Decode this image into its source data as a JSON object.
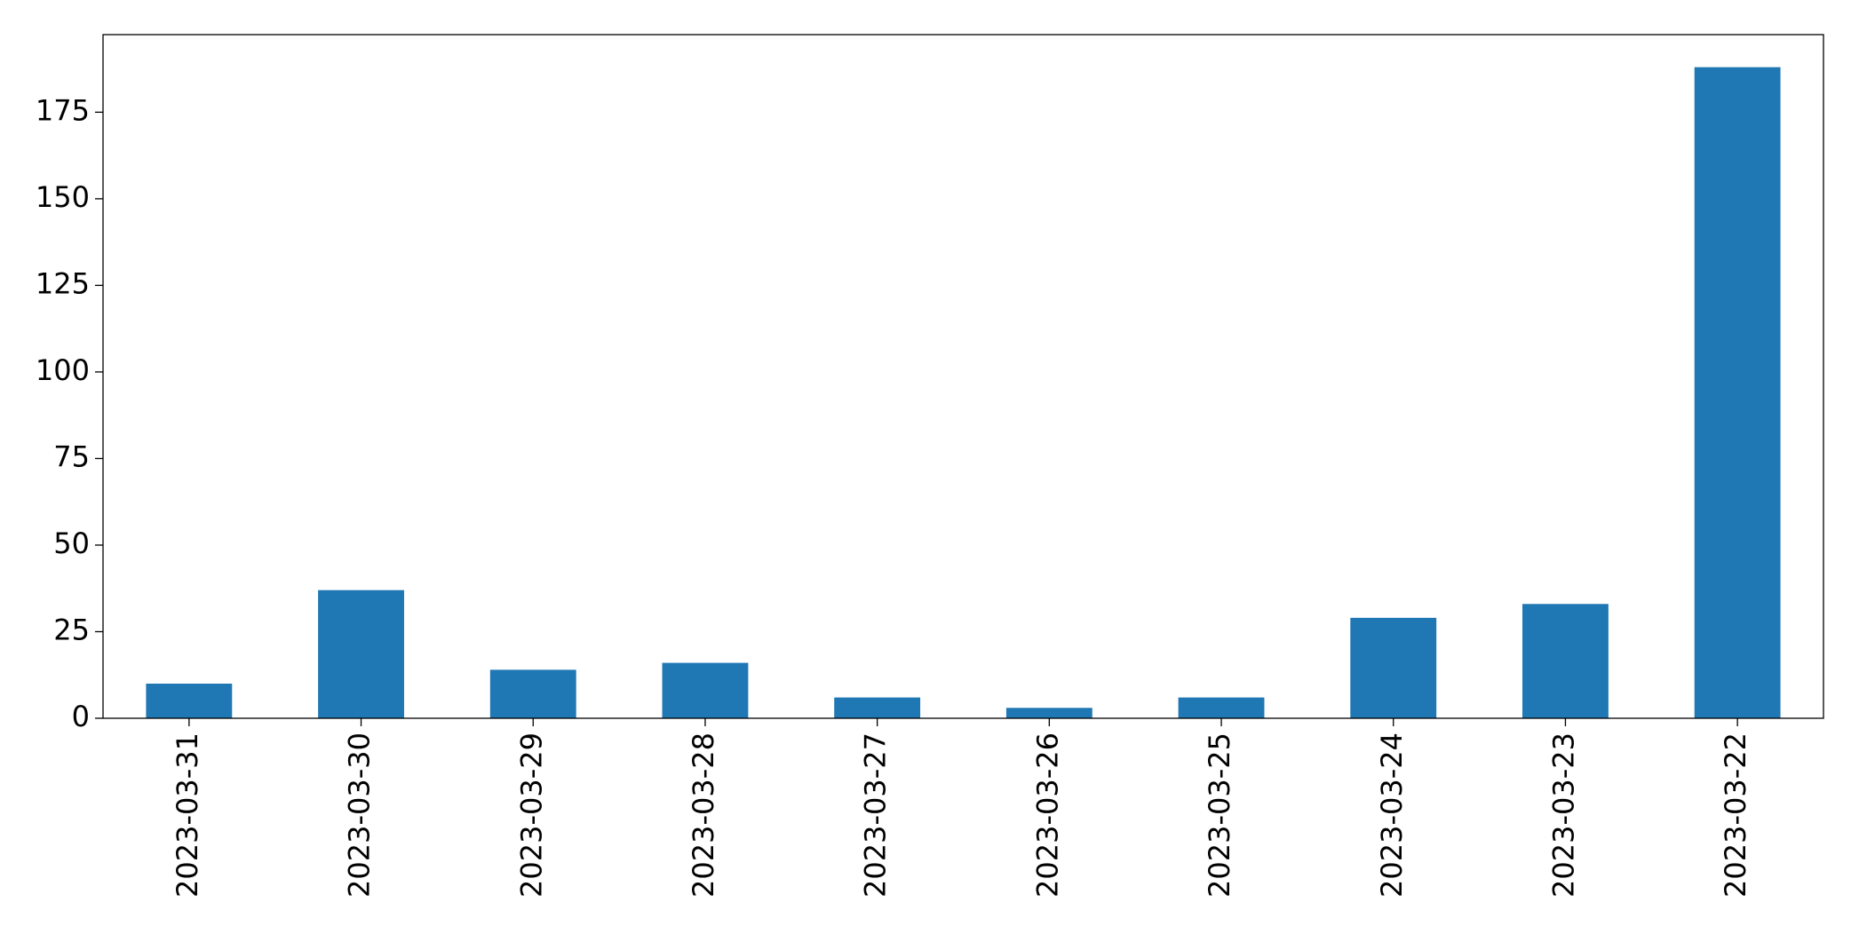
{
  "chart_data": {
    "type": "bar",
    "categories": [
      "2023-03-31",
      "2023-03-30",
      "2023-03-29",
      "2023-03-28",
      "2023-03-27",
      "2023-03-26",
      "2023-03-25",
      "2023-03-24",
      "2023-03-23",
      "2023-03-22"
    ],
    "values": [
      10,
      37,
      14,
      16,
      6,
      3,
      6,
      29,
      33,
      188
    ],
    "color": "#1f77b4",
    "ylim": [
      0,
      197.4
    ],
    "yticks": [
      0,
      25,
      50,
      75,
      100,
      125,
      150,
      175
    ],
    "grid": false
  }
}
